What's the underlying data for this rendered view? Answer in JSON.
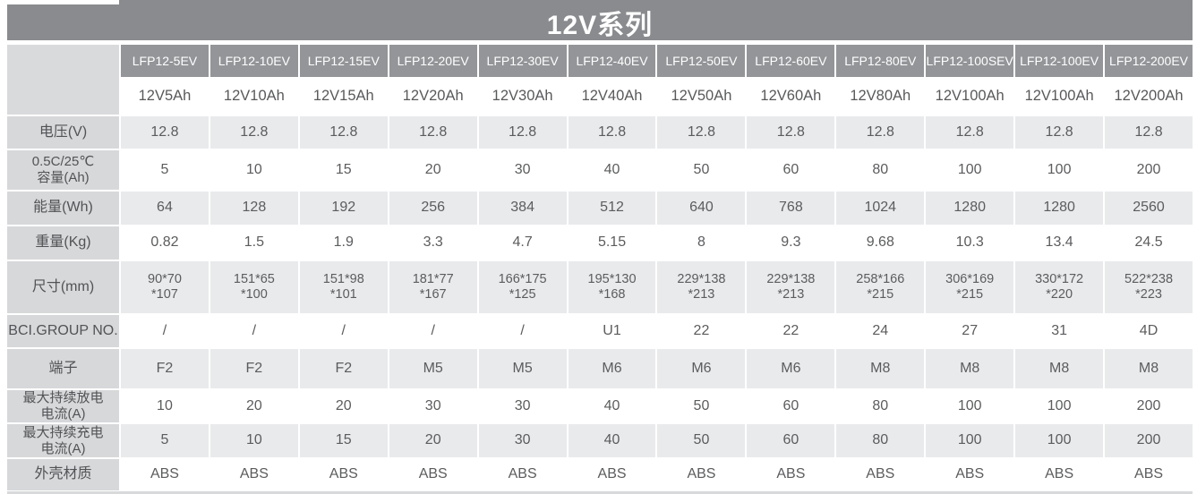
{
  "title": "12V系列",
  "colors": {
    "title_bar": "#898b8e",
    "model_header": "#939598",
    "label_column": "#d7d8da",
    "shaded_row": "#e9eaec",
    "text": "#5b5c5e",
    "header_text": "#ffffff"
  },
  "table": {
    "models": [
      "LFP12-5EV",
      "LFP12-10EV",
      "LFP12-15EV",
      "LFP12-20EV",
      "LFP12-30EV",
      "LFP12-40EV",
      "LFP12-50EV",
      "LFP12-60EV",
      "LFP12-80EV",
      "LFP12-100SEV",
      "LFP12-100EV",
      "LFP12-200EV"
    ],
    "capacities": [
      "12V5Ah",
      "12V10Ah",
      "12V15Ah",
      "12V20Ah",
      "12V30Ah",
      "12V40Ah",
      "12V50Ah",
      "12V60Ah",
      "12V80Ah",
      "12V100Ah",
      "12V100Ah",
      "12V200Ah"
    ],
    "rows": [
      {
        "label": "电压(V)",
        "values": [
          "12.8",
          "12.8",
          "12.8",
          "12.8",
          "12.8",
          "12.8",
          "12.8",
          "12.8",
          "12.8",
          "12.8",
          "12.8",
          "12.8"
        ]
      },
      {
        "label": "0.5C/25℃",
        "label2": "容量(Ah)",
        "values": [
          "5",
          "10",
          "15",
          "20",
          "30",
          "40",
          "50",
          "60",
          "80",
          "100",
          "100",
          "200"
        ]
      },
      {
        "label": "能量(Wh)",
        "values": [
          "64",
          "128",
          "192",
          "256",
          "384",
          "512",
          "640",
          "768",
          "1024",
          "1280",
          "1280",
          "2560"
        ]
      },
      {
        "label": "重量(Kg)",
        "values": [
          "0.82",
          "1.5",
          "1.9",
          "3.3",
          "4.7",
          "5.15",
          "8",
          "9.3",
          "9.68",
          "10.3",
          "13.4",
          "24.5"
        ]
      },
      {
        "label": "尺寸(mm)",
        "values": [
          "90*70\n*107",
          "151*65\n*100",
          "151*98\n*101",
          "181*77\n*167",
          "166*175\n*125",
          "195*130\n*168",
          "229*138\n*213",
          "229*138\n*213",
          "258*166\n*215",
          "306*169\n*215",
          "330*172\n*220",
          "522*238\n*223"
        ]
      },
      {
        "label": "BCI.GROUP NO.",
        "values": [
          "/",
          "/",
          "/",
          "/",
          "/",
          "U1",
          "22",
          "22",
          "24",
          "27",
          "31",
          "4D"
        ]
      },
      {
        "label": "端子",
        "values": [
          "F2",
          "F2",
          "F2",
          "M5",
          "M5",
          "M6",
          "M6",
          "M6",
          "M8",
          "M8",
          "M8",
          "M8"
        ]
      },
      {
        "label": "最大持续放电",
        "label2": "电流(A)",
        "values": [
          "10",
          "20",
          "20",
          "30",
          "30",
          "40",
          "50",
          "60",
          "80",
          "100",
          "100",
          "200"
        ]
      },
      {
        "label": "最大持续充电",
        "label2": "电流(A)",
        "values": [
          "5",
          "10",
          "15",
          "20",
          "30",
          "40",
          "50",
          "60",
          "80",
          "100",
          "100",
          "200"
        ]
      },
      {
        "label": "外壳材质",
        "values": [
          "ABS",
          "ABS",
          "ABS",
          "ABS",
          "ABS",
          "ABS",
          "ABS",
          "ABS",
          "ABS",
          "ABS",
          "ABS",
          "ABS"
        ]
      }
    ]
  }
}
